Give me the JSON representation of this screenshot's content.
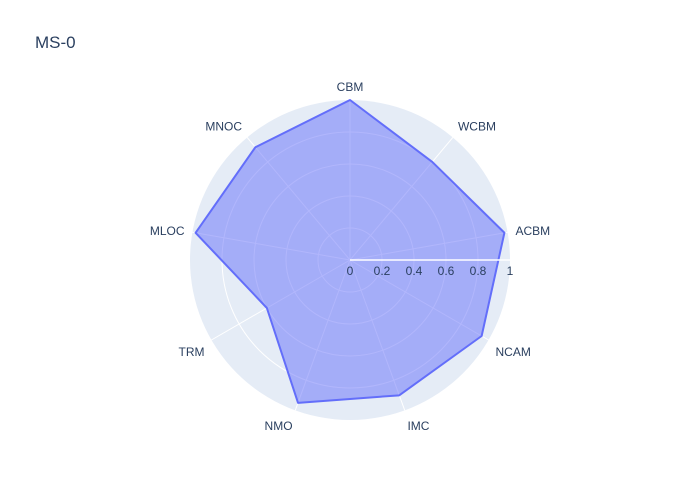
{
  "chart_data": {
    "type": "radar",
    "title": "MS-0",
    "categories": [
      "CBM",
      "WCBM",
      "ACBM",
      "NCAM",
      "IMC",
      "NMO",
      "TRM",
      "MLOC",
      "MNOC"
    ],
    "series": [
      {
        "name": "MS-0",
        "values": [
          1.0,
          0.8,
          0.98,
          0.95,
          0.9,
          0.95,
          0.6,
          0.98,
          0.92
        ]
      }
    ],
    "radial_range": [
      0,
      1
    ],
    "radial_ticks": [
      "0",
      "0.2",
      "0.4",
      "0.6",
      "0.8",
      "1"
    ],
    "colors": {
      "fill": "#636efa",
      "line": "#636efa",
      "polar_bg": "#e5ecf6",
      "grid": "#ffffff",
      "text": "#2a3f5f"
    }
  }
}
